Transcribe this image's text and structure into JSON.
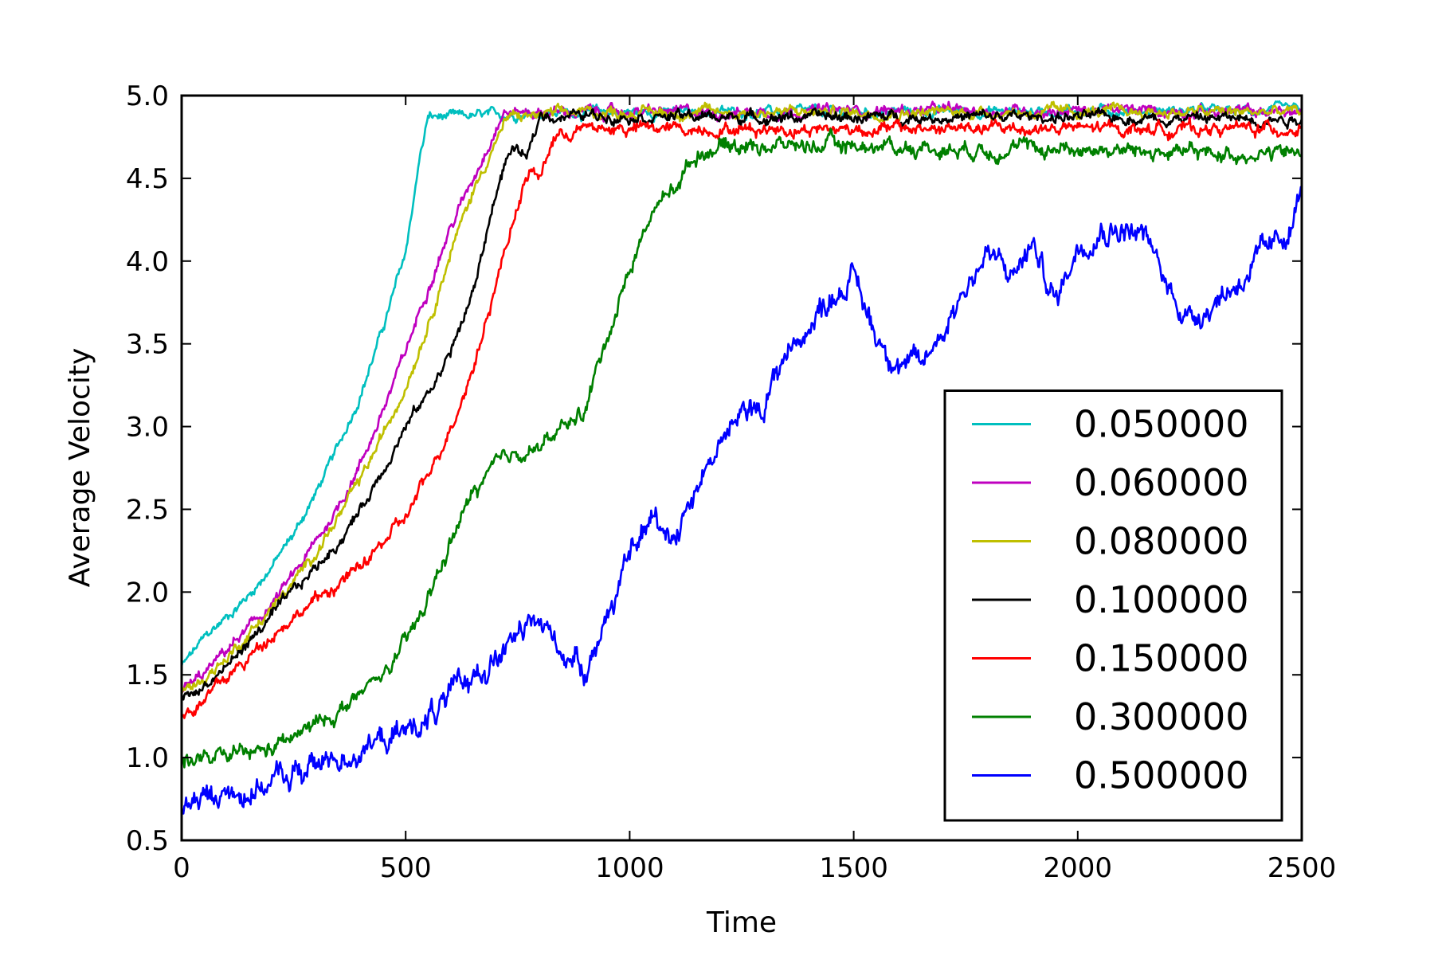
{
  "chart_data": {
    "type": "line",
    "title": "",
    "xlabel": "Time",
    "ylabel": "Average Velocity",
    "xlim": [
      0,
      2500
    ],
    "ylim": [
      0.5,
      5.0
    ],
    "xticks": [
      0,
      500,
      1000,
      1500,
      2000,
      2500
    ],
    "xtick_labels": [
      "0",
      "500",
      "1000",
      "1500",
      "2000",
      "2500"
    ],
    "yticks": [
      0.5,
      1.0,
      1.5,
      2.0,
      2.5,
      3.0,
      3.5,
      4.0,
      4.5,
      5.0
    ],
    "ytick_labels": [
      "0.5",
      "1.0",
      "1.5",
      "2.0",
      "2.5",
      "3.0",
      "3.5",
      "4.0",
      "4.5",
      "5.0"
    ],
    "grid": false,
    "legend_position": "bottom-right",
    "series": [
      {
        "name": "0.050000",
        "color": "#00bfbf",
        "noise": 0.03,
        "points": [
          [
            0,
            1.55
          ],
          [
            50,
            1.72
          ],
          [
            100,
            1.85
          ],
          [
            150,
            1.98
          ],
          [
            200,
            2.15
          ],
          [
            250,
            2.35
          ],
          [
            300,
            2.6
          ],
          [
            350,
            2.88
          ],
          [
            400,
            3.2
          ],
          [
            450,
            3.6
          ],
          [
            500,
            4.05
          ],
          [
            530,
            4.6
          ],
          [
            550,
            4.87
          ],
          [
            600,
            4.87
          ],
          [
            700,
            4.88
          ],
          [
            800,
            4.9
          ],
          [
            900,
            4.9
          ],
          [
            1000,
            4.9
          ],
          [
            1200,
            4.9
          ],
          [
            1500,
            4.9
          ],
          [
            2000,
            4.91
          ],
          [
            2500,
            4.91
          ]
        ]
      },
      {
        "name": "0.060000",
        "color": "#bf00bf",
        "noise": 0.035,
        "points": [
          [
            0,
            1.4
          ],
          [
            50,
            1.5
          ],
          [
            100,
            1.65
          ],
          [
            150,
            1.78
          ],
          [
            200,
            1.92
          ],
          [
            250,
            2.1
          ],
          [
            300,
            2.3
          ],
          [
            350,
            2.52
          ],
          [
            400,
            2.78
          ],
          [
            450,
            3.1
          ],
          [
            500,
            3.45
          ],
          [
            550,
            3.85
          ],
          [
            600,
            4.2
          ],
          [
            650,
            4.5
          ],
          [
            700,
            4.8
          ],
          [
            720,
            4.9
          ],
          [
            800,
            4.9
          ],
          [
            900,
            4.9
          ],
          [
            1200,
            4.9
          ],
          [
            1500,
            4.91
          ],
          [
            2000,
            4.91
          ],
          [
            2500,
            4.9
          ]
        ]
      },
      {
        "name": "0.080000",
        "color": "#bfbf00",
        "noise": 0.035,
        "points": [
          [
            0,
            1.38
          ],
          [
            50,
            1.48
          ],
          [
            100,
            1.6
          ],
          [
            150,
            1.75
          ],
          [
            200,
            1.9
          ],
          [
            250,
            2.05
          ],
          [
            300,
            2.25
          ],
          [
            350,
            2.45
          ],
          [
            400,
            2.68
          ],
          [
            450,
            2.95
          ],
          [
            500,
            3.25
          ],
          [
            550,
            3.62
          ],
          [
            600,
            4.05
          ],
          [
            650,
            4.42
          ],
          [
            700,
            4.72
          ],
          [
            730,
            4.87
          ],
          [
            800,
            4.88
          ],
          [
            900,
            4.9
          ],
          [
            1200,
            4.9
          ],
          [
            1500,
            4.9
          ],
          [
            2000,
            4.9
          ],
          [
            2500,
            4.9
          ]
        ]
      },
      {
        "name": "0.100000",
        "color": "#000000",
        "noise": 0.035,
        "points": [
          [
            0,
            1.35
          ],
          [
            50,
            1.43
          ],
          [
            100,
            1.55
          ],
          [
            150,
            1.7
          ],
          [
            200,
            1.85
          ],
          [
            250,
            2.0
          ],
          [
            300,
            2.15
          ],
          [
            350,
            2.3
          ],
          [
            400,
            2.5
          ],
          [
            450,
            2.75
          ],
          [
            500,
            3.0
          ],
          [
            550,
            3.2
          ],
          [
            600,
            3.45
          ],
          [
            650,
            3.8
          ],
          [
            700,
            4.4
          ],
          [
            730,
            4.65
          ],
          [
            750,
            4.68
          ],
          [
            770,
            4.6
          ],
          [
            800,
            4.88
          ],
          [
            900,
            4.88
          ],
          [
            1000,
            4.88
          ],
          [
            1200,
            4.87
          ],
          [
            1500,
            4.87
          ],
          [
            2000,
            4.87
          ],
          [
            2500,
            4.86
          ]
        ]
      },
      {
        "name": "0.150000",
        "color": "#ff0000",
        "noise": 0.04,
        "points": [
          [
            0,
            1.25
          ],
          [
            50,
            1.35
          ],
          [
            100,
            1.48
          ],
          [
            150,
            1.6
          ],
          [
            200,
            1.75
          ],
          [
            250,
            1.85
          ],
          [
            300,
            1.95
          ],
          [
            350,
            2.05
          ],
          [
            400,
            2.15
          ],
          [
            450,
            2.3
          ],
          [
            500,
            2.45
          ],
          [
            550,
            2.7
          ],
          [
            600,
            3.0
          ],
          [
            650,
            3.35
          ],
          [
            700,
            3.85
          ],
          [
            750,
            4.35
          ],
          [
            780,
            4.55
          ],
          [
            800,
            4.5
          ],
          [
            830,
            4.75
          ],
          [
            900,
            4.8
          ],
          [
            1000,
            4.8
          ],
          [
            1200,
            4.8
          ],
          [
            1500,
            4.8
          ],
          [
            2000,
            4.8
          ],
          [
            2500,
            4.8
          ]
        ]
      },
      {
        "name": "0.300000",
        "color": "#008000",
        "noise": 0.05,
        "points": [
          [
            0,
            1.0
          ],
          [
            50,
            0.98
          ],
          [
            100,
            1.0
          ],
          [
            150,
            1.02
          ],
          [
            200,
            1.05
          ],
          [
            250,
            1.12
          ],
          [
            300,
            1.2
          ],
          [
            350,
            1.28
          ],
          [
            400,
            1.38
          ],
          [
            450,
            1.5
          ],
          [
            500,
            1.68
          ],
          [
            550,
            1.95
          ],
          [
            600,
            2.3
          ],
          [
            650,
            2.6
          ],
          [
            700,
            2.75
          ],
          [
            750,
            2.85
          ],
          [
            800,
            2.88
          ],
          [
            850,
            2.98
          ],
          [
            900,
            3.1
          ],
          [
            950,
            3.55
          ],
          [
            1000,
            3.95
          ],
          [
            1050,
            4.3
          ],
          [
            1100,
            4.45
          ],
          [
            1150,
            4.65
          ],
          [
            1200,
            4.7
          ],
          [
            1300,
            4.7
          ],
          [
            1500,
            4.7
          ],
          [
            1700,
            4.68
          ],
          [
            2000,
            4.68
          ],
          [
            2250,
            4.65
          ],
          [
            2500,
            4.65
          ]
        ]
      },
      {
        "name": "0.500000",
        "color": "#0000ff",
        "noise": 0.08,
        "points": [
          [
            0,
            0.7
          ],
          [
            50,
            0.75
          ],
          [
            100,
            0.78
          ],
          [
            150,
            0.8
          ],
          [
            200,
            0.85
          ],
          [
            250,
            0.9
          ],
          [
            300,
            0.95
          ],
          [
            350,
            1.0
          ],
          [
            400,
            1.05
          ],
          [
            450,
            1.1
          ],
          [
            500,
            1.15
          ],
          [
            550,
            1.25
          ],
          [
            600,
            1.35
          ],
          [
            650,
            1.5
          ],
          [
            700,
            1.6
          ],
          [
            750,
            1.72
          ],
          [
            800,
            1.82
          ],
          [
            850,
            1.65
          ],
          [
            900,
            1.55
          ],
          [
            950,
            1.85
          ],
          [
            1000,
            2.2
          ],
          [
            1050,
            2.45
          ],
          [
            1100,
            2.35
          ],
          [
            1150,
            2.65
          ],
          [
            1200,
            2.9
          ],
          [
            1250,
            3.05
          ],
          [
            1300,
            3.15
          ],
          [
            1350,
            3.45
          ],
          [
            1400,
            3.6
          ],
          [
            1450,
            3.8
          ],
          [
            1500,
            3.9
          ],
          [
            1550,
            3.55
          ],
          [
            1600,
            3.4
          ],
          [
            1650,
            3.35
          ],
          [
            1700,
            3.6
          ],
          [
            1750,
            3.85
          ],
          [
            1800,
            4.05
          ],
          [
            1850,
            3.9
          ],
          [
            1900,
            4.1
          ],
          [
            1950,
            3.75
          ],
          [
            2000,
            4.1
          ],
          [
            2050,
            4.2
          ],
          [
            2100,
            4.2
          ],
          [
            2150,
            4.15
          ],
          [
            2200,
            3.85
          ],
          [
            2250,
            3.65
          ],
          [
            2300,
            3.75
          ],
          [
            2350,
            3.85
          ],
          [
            2400,
            4.0
          ],
          [
            2450,
            4.1
          ],
          [
            2480,
            4.25
          ],
          [
            2500,
            4.45
          ]
        ]
      }
    ]
  }
}
